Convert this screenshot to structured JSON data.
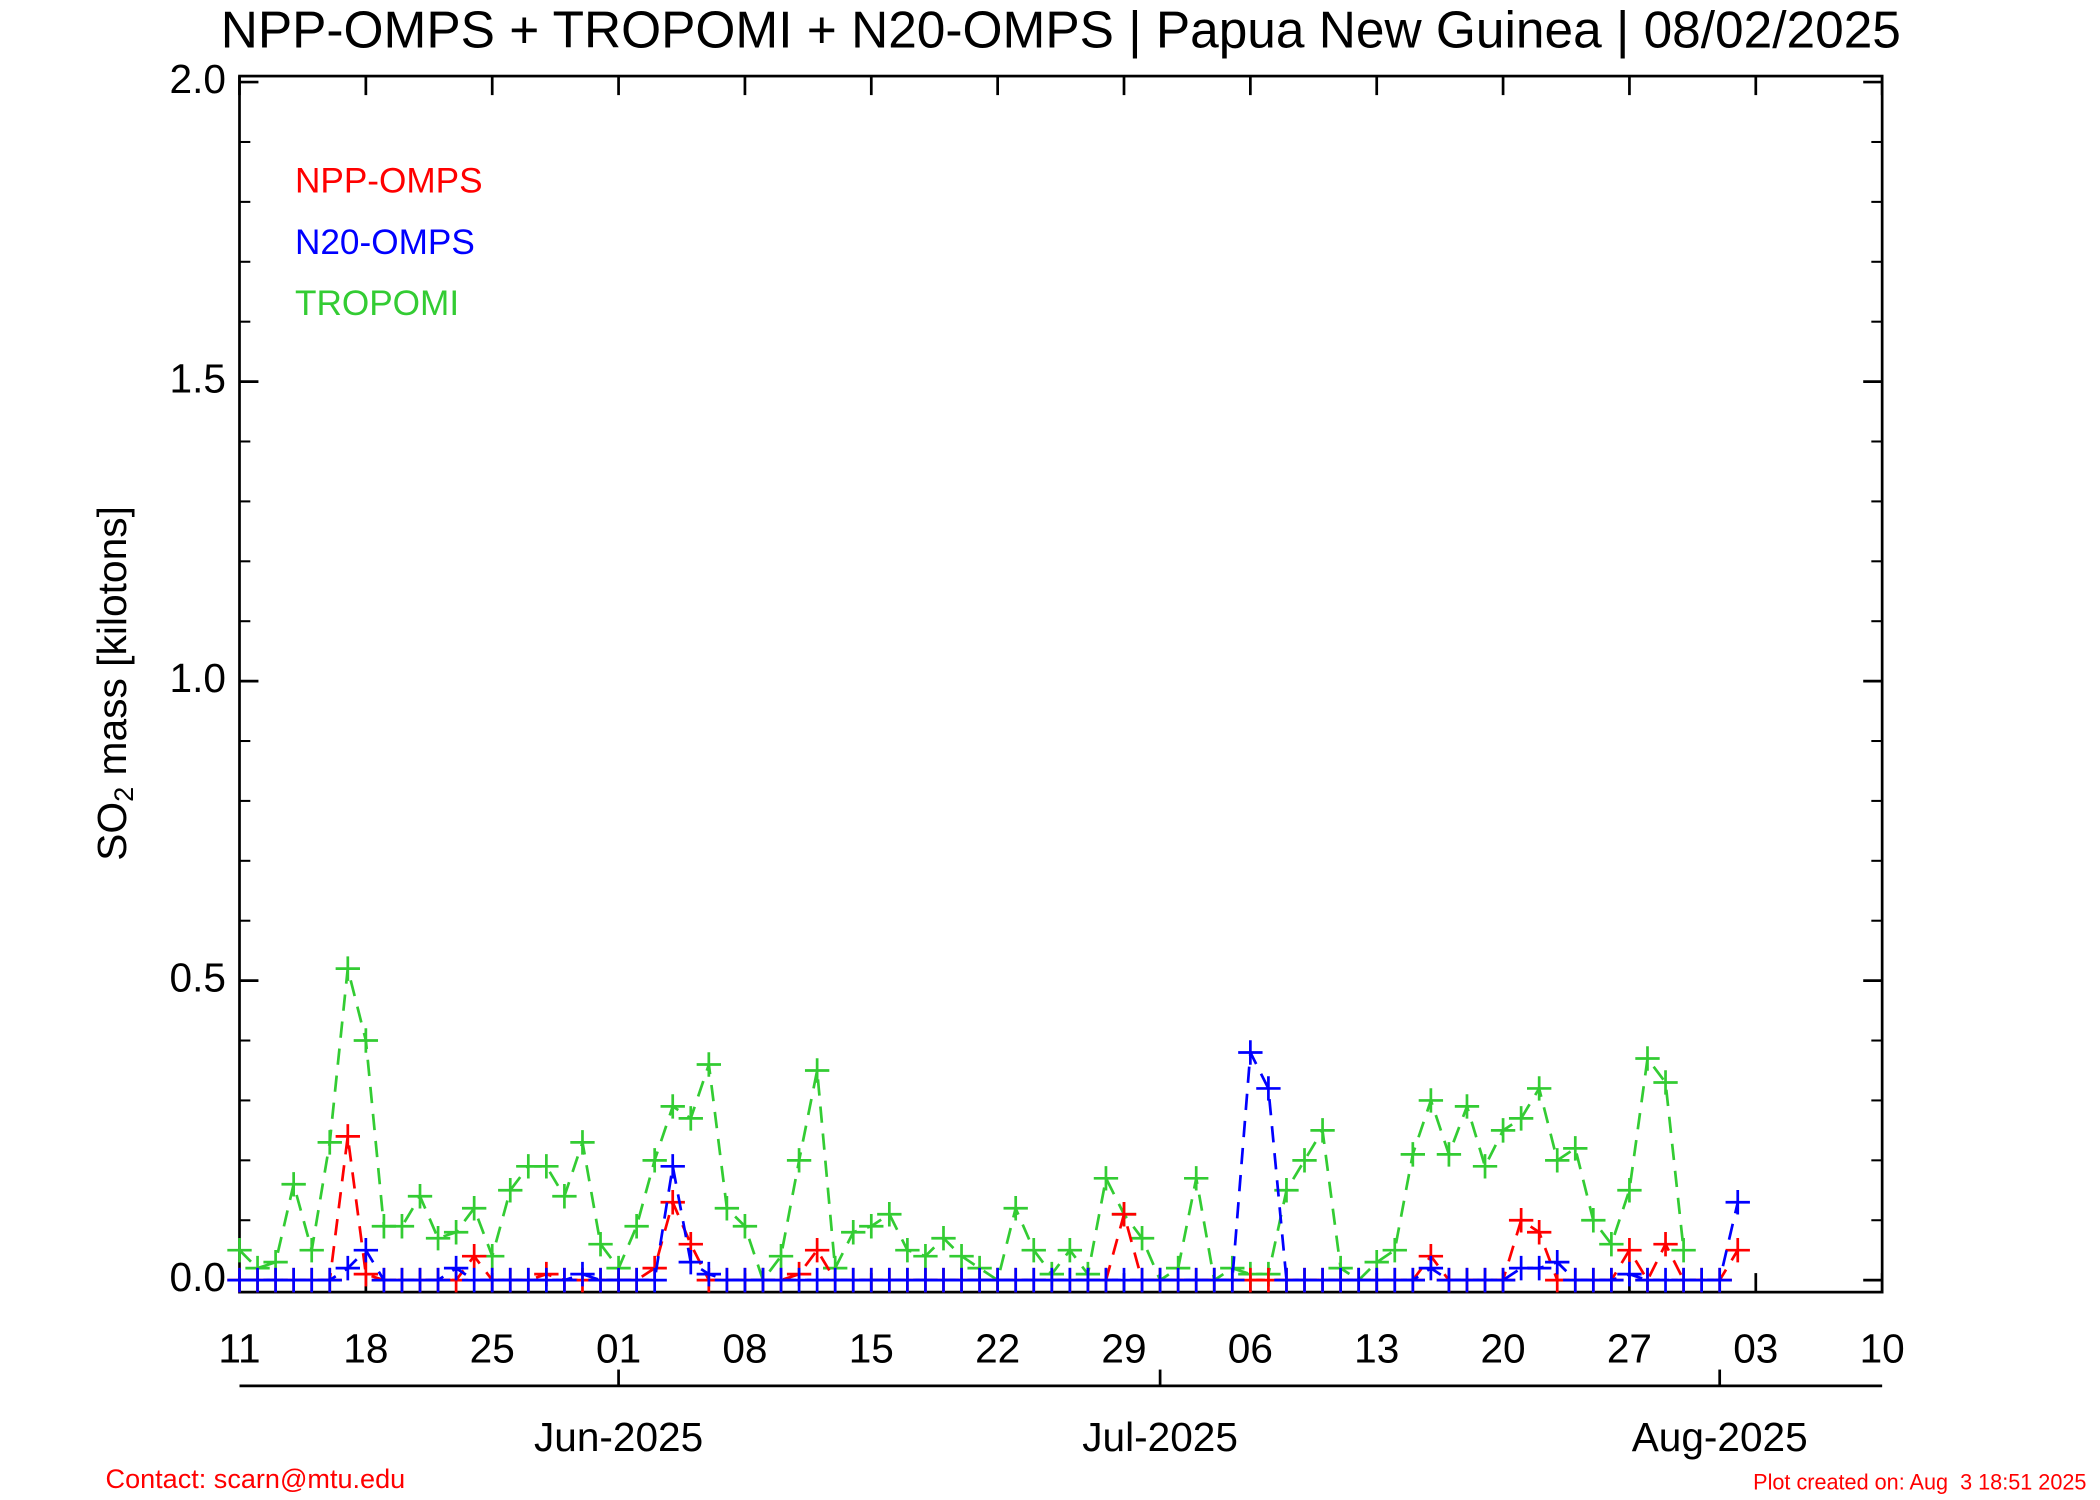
{
  "chart_data": {
    "type": "line",
    "title": "NPP-OMPS + TROPOMI + N20-OMPS | Papua New Guinea | 08/02/2025",
    "y_label_parts": [
      "SO",
      "2",
      " mass [kilotons]"
    ],
    "contact": "Contact: scarn@mtu.edu",
    "created": "Plot created on: Aug  3 18:51 2025",
    "x": [
      "2025-05-11",
      "2025-05-12",
      "2025-05-13",
      "2025-05-14",
      "2025-05-15",
      "2025-05-16",
      "2025-05-17",
      "2025-05-18",
      "2025-05-19",
      "2025-05-20",
      "2025-05-21",
      "2025-05-22",
      "2025-05-23",
      "2025-05-24",
      "2025-05-25",
      "2025-05-26",
      "2025-05-27",
      "2025-05-28",
      "2025-05-29",
      "2025-05-30",
      "2025-05-31",
      "2025-06-01",
      "2025-06-02",
      "2025-06-03",
      "2025-06-04",
      "2025-06-05",
      "2025-06-06",
      "2025-06-07",
      "2025-06-08",
      "2025-06-09",
      "2025-06-10",
      "2025-06-11",
      "2025-06-12",
      "2025-06-13",
      "2025-06-14",
      "2025-06-15",
      "2025-06-16",
      "2025-06-17",
      "2025-06-18",
      "2025-06-19",
      "2025-06-20",
      "2025-06-21",
      "2025-06-22",
      "2025-06-23",
      "2025-06-24",
      "2025-06-25",
      "2025-06-26",
      "2025-06-27",
      "2025-06-28",
      "2025-06-29",
      "2025-06-30",
      "2025-07-01",
      "2025-07-02",
      "2025-07-03",
      "2025-07-04",
      "2025-07-05",
      "2025-07-06",
      "2025-07-07",
      "2025-07-08",
      "2025-07-09",
      "2025-07-10",
      "2025-07-11",
      "2025-07-12",
      "2025-07-13",
      "2025-07-14",
      "2025-07-15",
      "2025-07-16",
      "2025-07-17",
      "2025-07-18",
      "2025-07-19",
      "2025-07-20",
      "2025-07-21",
      "2025-07-22",
      "2025-07-23",
      "2025-07-24",
      "2025-07-25",
      "2025-07-26",
      "2025-07-27",
      "2025-07-28",
      "2025-07-29",
      "2025-07-30",
      "2025-07-31",
      "2025-08-01",
      "2025-08-02"
    ],
    "series": [
      {
        "name": "NPP-OMPS",
        "color": "#ff0000",
        "values": [
          0,
          0,
          0,
          0,
          0,
          0,
          0.24,
          0.01,
          0,
          0,
          0,
          0,
          0,
          0.04,
          0,
          0,
          0,
          0.01,
          0,
          0,
          0,
          0,
          0,
          0.02,
          0.13,
          0.06,
          0,
          0,
          0,
          0,
          0,
          0.01,
          0.05,
          0,
          0,
          0,
          0,
          0,
          0,
          0,
          0,
          0,
          0,
          0,
          0,
          0,
          0,
          0,
          0,
          0.11,
          0,
          0,
          0,
          0,
          0,
          0,
          0,
          0,
          0,
          0,
          0,
          0,
          0,
          0,
          0,
          0,
          0.04,
          0,
          0,
          0,
          0,
          0.1,
          0.08,
          0,
          0,
          0,
          0,
          0.05,
          0,
          0.06,
          0,
          0,
          0,
          0.05
        ]
      },
      {
        "name": "N20-OMPS",
        "color": "#0000ff",
        "values": [
          0,
          0,
          0,
          0,
          0,
          0,
          0.02,
          0.05,
          0,
          0,
          0,
          0,
          0.02,
          0,
          0,
          0,
          0,
          0,
          0,
          0.01,
          0,
          0,
          0,
          0,
          0.19,
          0.03,
          0.01,
          0,
          0,
          0,
          0,
          0,
          0,
          0,
          0,
          0,
          0,
          0,
          0,
          0,
          0,
          0,
          0,
          0,
          0,
          0,
          0,
          0,
          0,
          0,
          0,
          0,
          0,
          0,
          0,
          0,
          0.38,
          0.32,
          0,
          0,
          0,
          0,
          0,
          0,
          0,
          0,
          0.02,
          0,
          0,
          0,
          0,
          0.02,
          0.02,
          0.03,
          0,
          0,
          0,
          0.01,
          0,
          0,
          0,
          0,
          0,
          0.13
        ]
      },
      {
        "name": "TROPOMI",
        "color": "#33cc33",
        "values": [
          0.05,
          0.02,
          0.03,
          0.16,
          0.05,
          0.23,
          0.52,
          0.4,
          0.09,
          0.09,
          0.14,
          0.07,
          0.08,
          0.12,
          0.04,
          0.15,
          0.19,
          0.19,
          0.14,
          0.23,
          0.06,
          0.02,
          0.09,
          0.2,
          0.29,
          0.27,
          0.36,
          0.12,
          0.09,
          0,
          0.04,
          0.2,
          0.35,
          0.02,
          0.08,
          0.09,
          0.11,
          0.05,
          0.04,
          0.07,
          0.04,
          0.02,
          0,
          0.12,
          0.05,
          0.01,
          0.05,
          0.01,
          0.17,
          0.11,
          0.07,
          0,
          0.02,
          0.17,
          0,
          0.02,
          0.01,
          0.01,
          0.15,
          0.2,
          0.25,
          0.02,
          0,
          0.03,
          0.05,
          0.21,
          0.3,
          0.21,
          0.29,
          0.19,
          0.25,
          0.27,
          0.32,
          0.2,
          0.22,
          0.1,
          0.06,
          0.15,
          0.37,
          0.33,
          0.05,
          null,
          null,
          null
        ]
      }
    ],
    "xlim": [
      "2025-05-11",
      "2025-08-10"
    ],
    "xticks": [
      {
        "value": "2025-05-11",
        "label": "11"
      },
      {
        "value": "2025-05-18",
        "label": "18"
      },
      {
        "value": "2025-05-25",
        "label": "25"
      },
      {
        "value": "2025-06-01",
        "label": "01"
      },
      {
        "value": "2025-06-08",
        "label": "08"
      },
      {
        "value": "2025-06-15",
        "label": "15"
      },
      {
        "value": "2025-06-22",
        "label": "22"
      },
      {
        "value": "2025-06-29",
        "label": "29"
      },
      {
        "value": "2025-07-06",
        "label": "06"
      },
      {
        "value": "2025-07-13",
        "label": "13"
      },
      {
        "value": "2025-07-20",
        "label": "20"
      },
      {
        "value": "2025-07-27",
        "label": "27"
      },
      {
        "value": "2025-08-03",
        "label": "03"
      },
      {
        "value": "2025-08-10",
        "label": "10"
      }
    ],
    "month_ticks": [
      {
        "value": "2025-06-01",
        "label": "Jun-2025"
      },
      {
        "value": "2025-07-01",
        "label": "Jul-2025"
      },
      {
        "value": "2025-08-01",
        "label": "Aug-2025"
      }
    ],
    "ylim": [
      -0.02,
      2.01
    ],
    "yticks": [
      {
        "value": 0,
        "label": "0.0"
      },
      {
        "value": 0.5,
        "label": "0.5"
      },
      {
        "value": 1,
        "label": "1.0"
      },
      {
        "value": 1.5,
        "label": "1.5"
      },
      {
        "value": 2,
        "label": "2.0"
      }
    ],
    "y_minor_ticks": [
      0.1,
      0.2,
      0.3,
      0.4,
      0.6,
      0.7,
      0.8,
      0.9,
      1.1,
      1.2,
      1.3,
      1.4,
      1.6,
      1.7,
      1.8,
      1.9
    ],
    "line_style": "dashed",
    "marker": "plus"
  }
}
